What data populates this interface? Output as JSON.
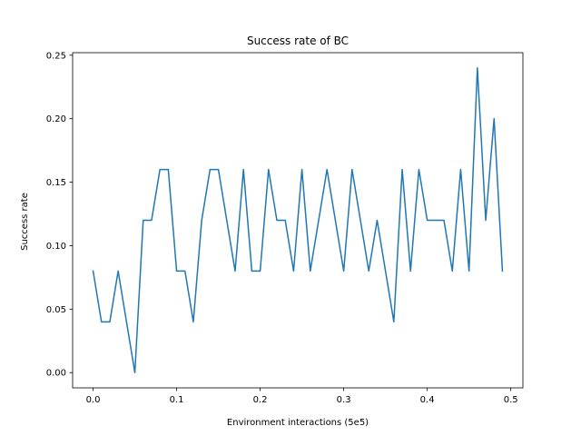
{
  "chart_data": {
    "type": "line",
    "title": "Success rate of BC",
    "xlabel": "Environment interactions (5e5)",
    "ylabel": "Success rate",
    "xlim": [
      -0.0245,
      0.5145
    ],
    "ylim": [
      -0.012,
      0.252
    ],
    "xticks": [
      0.0,
      0.1,
      0.2,
      0.3,
      0.4,
      0.5
    ],
    "xtick_labels": [
      "0.0",
      "0.1",
      "0.2",
      "0.3",
      "0.4",
      "0.5"
    ],
    "yticks": [
      0.0,
      0.05,
      0.1,
      0.15,
      0.2,
      0.25
    ],
    "ytick_labels": [
      "0.00",
      "0.05",
      "0.10",
      "0.15",
      "0.20",
      "0.25"
    ],
    "grid": false,
    "series": [
      {
        "color": "#1f77b4",
        "x": [
          0.0,
          0.01,
          0.02,
          0.03,
          0.04,
          0.05,
          0.06,
          0.07,
          0.08,
          0.09,
          0.1,
          0.11,
          0.12,
          0.13,
          0.14,
          0.15,
          0.16,
          0.17,
          0.18,
          0.19,
          0.2,
          0.21,
          0.22,
          0.23,
          0.24,
          0.25,
          0.26,
          0.27,
          0.28,
          0.29,
          0.3,
          0.31,
          0.32,
          0.33,
          0.34,
          0.35,
          0.36,
          0.37,
          0.38,
          0.39,
          0.4,
          0.41,
          0.42,
          0.43,
          0.44,
          0.45,
          0.46,
          0.47,
          0.48,
          0.49
        ],
        "y": [
          0.08,
          0.04,
          0.04,
          0.08,
          0.04,
          0.0,
          0.12,
          0.12,
          0.16,
          0.16,
          0.08,
          0.08,
          0.04,
          0.12,
          0.16,
          0.16,
          0.12,
          0.08,
          0.16,
          0.08,
          0.08,
          0.16,
          0.12,
          0.12,
          0.08,
          0.16,
          0.08,
          0.12,
          0.16,
          0.12,
          0.08,
          0.16,
          0.12,
          0.08,
          0.12,
          0.08,
          0.04,
          0.16,
          0.08,
          0.16,
          0.12,
          0.12,
          0.12,
          0.08,
          0.16,
          0.08,
          0.24,
          0.12,
          0.2,
          0.08
        ]
      }
    ]
  }
}
